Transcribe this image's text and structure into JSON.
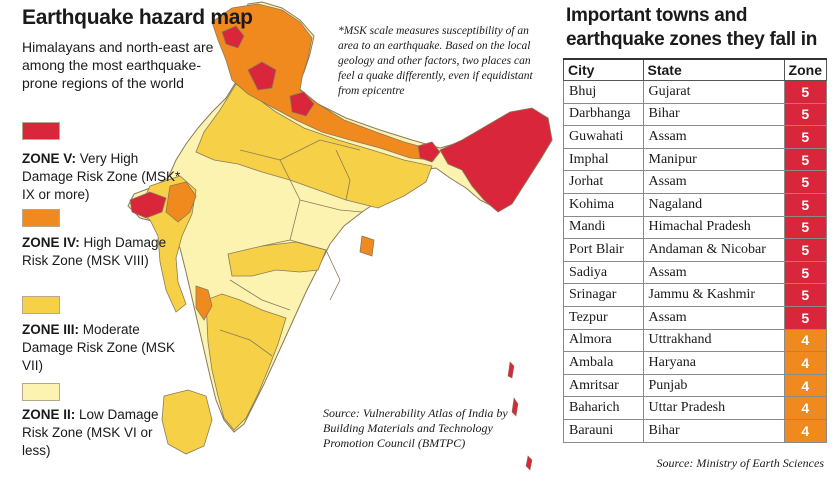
{
  "header": {
    "title": "Earthquake hazard map",
    "subtitle": "Himalayans and north-east are among the most earthquake-prone regions of the world"
  },
  "note": "*MSK scale measures susceptibility of an area to an earthquake. Based on the local geology and other factors, two places can feel a quake differently, even if equidistant from epicentre",
  "legend": [
    {
      "zone": "ZONE V:",
      "desc": "Very High Damage Risk Zone (MSK* IX or more)",
      "color": "#d9263a"
    },
    {
      "zone": "ZONE IV:",
      "desc": "High Damage Risk Zone (MSK VIII)",
      "color": "#f08a1f"
    },
    {
      "zone": "ZONE III:",
      "desc": "Moderate Damage Risk Zone (MSK VII)",
      "color": "#f6d046"
    },
    {
      "zone": "ZONE II:",
      "desc": "Low Damage Risk Zone (MSK VI or less)",
      "color": "#fcf3b0"
    }
  ],
  "map_source": "Source: Vulnerability Atlas of India by Building Materials and Technology Promotion Council (BMTPC)",
  "table": {
    "title": "Important towns and earthquake zones they fall in",
    "columns": [
      "City",
      "State",
      "Zone"
    ],
    "rows": [
      [
        "Bhuj",
        "Gujarat",
        "5"
      ],
      [
        "Darbhanga",
        "Bihar",
        "5"
      ],
      [
        "Guwahati",
        "Assam",
        "5"
      ],
      [
        "Imphal",
        "Manipur",
        "5"
      ],
      [
        "Jorhat",
        "Assam",
        "5"
      ],
      [
        "Kohima",
        "Nagaland",
        "5"
      ],
      [
        "Mandi",
        "Himachal Pradesh",
        "5"
      ],
      [
        "Port Blair",
        "Andaman & Nicobar",
        "5"
      ],
      [
        "Sadiya",
        "Assam",
        "5"
      ],
      [
        "Srinagar",
        "Jammu & Kashmir",
        "5"
      ],
      [
        "Tezpur",
        "Assam",
        "5"
      ],
      [
        "Almora",
        "Uttrakhand",
        "4"
      ],
      [
        "Ambala",
        "Haryana",
        "4"
      ],
      [
        "Amritsar",
        "Punjab",
        "4"
      ],
      [
        "Baharich",
        "Uttar Pradesh",
        "4"
      ],
      [
        "Barauni",
        "Bihar",
        "4"
      ]
    ],
    "source": "Source: Ministry of Earth Sciences"
  },
  "colors": {
    "zone5": "#d9263a",
    "zone4": "#f08a1f",
    "zone3": "#f6d046",
    "zone2": "#fcf3b0",
    "border": "#8a7a5a"
  }
}
